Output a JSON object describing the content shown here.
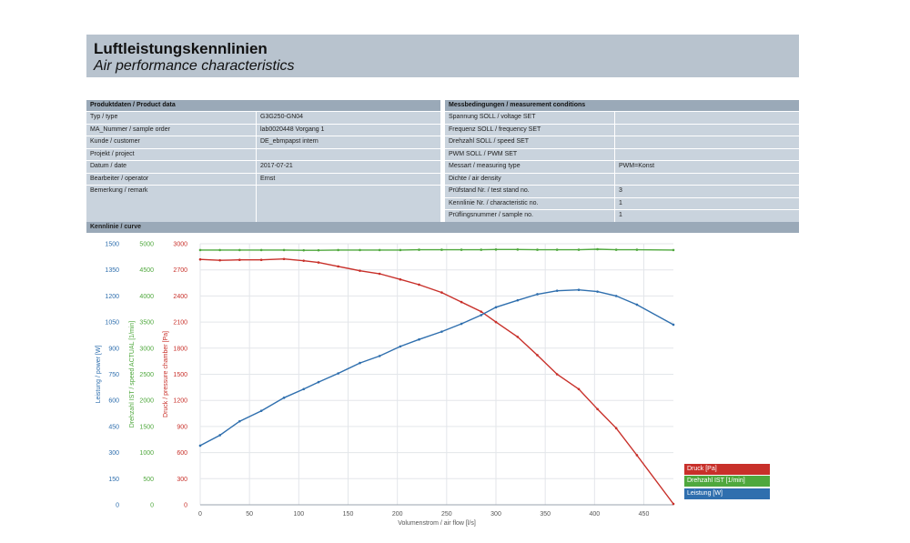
{
  "header": {
    "title": "Luftleistungskennlinien",
    "subtitle": "Air performance characteristics"
  },
  "product": {
    "heading": "Produktdaten / Product data",
    "rows": [
      {
        "label": "Typ / type",
        "value": "G3G250-GN04"
      },
      {
        "label": "MA_Nummer / sample order",
        "value": "lab0020448 Vorgang 1"
      },
      {
        "label": "Kunde / customer",
        "value": "DE_ebmpapst intern"
      },
      {
        "label": "Projekt / project",
        "value": ""
      },
      {
        "label": "Datum / date",
        "value": "2017-07-21"
      },
      {
        "label": "Bearbeiter / operator",
        "value": "Ernst"
      },
      {
        "label": "Bemerkung / remark",
        "value": ""
      }
    ]
  },
  "measurement": {
    "heading": "Messbedingungen / measurement conditions",
    "rows": [
      {
        "label": "Spannung SOLL / voltage SET",
        "value": ""
      },
      {
        "label": "Frequenz SOLL / frequency SET",
        "value": ""
      },
      {
        "label": "Drehzahl SOLL / speed SET",
        "value": ""
      },
      {
        "label": "PWM SOLL / PWM SET",
        "value": ""
      },
      {
        "label": "Messart / measuring type",
        "value": "PWM=Konst"
      },
      {
        "label": "Dichte / air density",
        "value": ""
      },
      {
        "label": "Prüfstand Nr. / test stand no.",
        "value": "3"
      },
      {
        "label": "Kennlinie Nr. / characteristic no.",
        "value": "1"
      },
      {
        "label": "Prüflingsnummer / sample no.",
        "value": "1"
      }
    ]
  },
  "curve_heading": "Kennlinie / curve",
  "colors": {
    "pressure": "#c8302a",
    "speed": "#4fa83d",
    "power": "#2f6fae"
  },
  "chart_data": {
    "type": "line",
    "xlabel": "Volumenstrom / air flow [l/s]",
    "xlim": [
      0,
      480
    ],
    "x_ticks": [
      0,
      50,
      100,
      150,
      200,
      250,
      300,
      350,
      400,
      450
    ],
    "axes": [
      {
        "label": "Leistung / power [W]",
        "ylim": [
          0,
          1500
        ],
        "ticks": [
          0,
          150,
          300,
          450,
          600,
          750,
          900,
          1050,
          1200,
          1350,
          1500
        ]
      },
      {
        "label": "Drehzahl IST / speed ACTUAL [1/min]",
        "ylim": [
          0,
          5000
        ],
        "ticks": [
          0,
          500,
          1000,
          1500,
          2000,
          2500,
          3000,
          3500,
          4000,
          4500,
          5000
        ]
      },
      {
        "label": "Druck / pressure chamber [Pa]",
        "ylim": [
          0,
          3000
        ],
        "ticks": [
          0,
          300,
          600,
          900,
          1200,
          1500,
          1800,
          2100,
          2400,
          2700,
          3000
        ]
      }
    ],
    "series": [
      {
        "name": "Druck [Pa]",
        "axis": 2,
        "x": [
          0,
          20,
          40,
          62,
          85,
          105,
          120,
          140,
          162,
          182,
          203,
          222,
          245,
          265,
          285,
          300,
          322,
          342,
          362,
          384,
          403,
          422,
          443,
          480
        ],
        "y": [
          2820,
          2810,
          2815,
          2815,
          2825,
          2805,
          2785,
          2740,
          2690,
          2655,
          2590,
          2530,
          2440,
          2330,
          2220,
          2100,
          1930,
          1720,
          1500,
          1330,
          1100,
          880,
          570,
          10
        ]
      },
      {
        "name": "Drehzahl IST [1/min]",
        "axis": 1,
        "x": [
          0,
          20,
          40,
          62,
          85,
          105,
          120,
          140,
          162,
          182,
          203,
          222,
          245,
          265,
          285,
          300,
          322,
          342,
          362,
          384,
          403,
          422,
          443,
          480
        ],
        "y": [
          4880,
          4880,
          4880,
          4880,
          4880,
          4875,
          4875,
          4880,
          4880,
          4880,
          4880,
          4885,
          4885,
          4885,
          4885,
          4890,
          4890,
          4885,
          4885,
          4885,
          4895,
          4885,
          4885,
          4880
        ]
      },
      {
        "name": "Leistung [W]",
        "axis": 0,
        "x": [
          0,
          20,
          40,
          62,
          85,
          105,
          120,
          140,
          162,
          182,
          203,
          222,
          245,
          265,
          285,
          300,
          322,
          342,
          362,
          384,
          403,
          422,
          443,
          480
        ],
        "y": [
          340,
          400,
          480,
          540,
          615,
          665,
          705,
          755,
          815,
          855,
          910,
          950,
          995,
          1040,
          1090,
          1135,
          1175,
          1210,
          1230,
          1235,
          1225,
          1200,
          1150,
          1035
        ]
      }
    ],
    "legend": "right"
  }
}
